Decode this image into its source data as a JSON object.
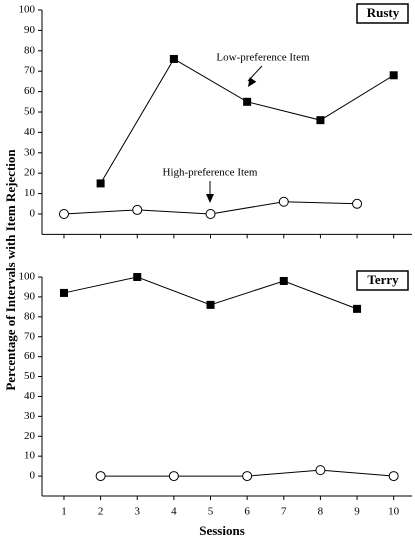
{
  "shared_labels": {
    "y": "Percentage of Intervals with Item Rejection",
    "x": "Sessions"
  },
  "chart_data": [
    {
      "type": "line",
      "label": "Rusty",
      "xlim": [
        0.4,
        10.5
      ],
      "ylim": [
        -10,
        100
      ],
      "yticks": [
        0,
        10,
        20,
        30,
        40,
        50,
        60,
        70,
        80,
        90,
        100
      ],
      "xticks": [
        1,
        2,
        3,
        4,
        5,
        6,
        7,
        8,
        9,
        10
      ],
      "show_xtick_labels": false,
      "series": [
        {
          "marker": "square",
          "color": "#000000",
          "x": [
            2,
            4,
            6,
            8,
            10
          ],
          "values": [
            15,
            76,
            55,
            46,
            68
          ]
        },
        {
          "marker": "circle",
          "color": "#000000",
          "x": [
            1,
            3,
            5,
            7,
            9
          ],
          "values": [
            0,
            2,
            0,
            6,
            5
          ]
        }
      ],
      "annotations": [
        "Low-preference Item",
        "High-preference Item"
      ]
    },
    {
      "type": "line",
      "label": "Terry",
      "xlim": [
        0.4,
        10.5
      ],
      "ylim": [
        -10,
        100
      ],
      "yticks": [
        0,
        10,
        20,
        30,
        40,
        50,
        60,
        70,
        80,
        90,
        100
      ],
      "xticks": [
        1,
        2,
        3,
        4,
        5,
        6,
        7,
        8,
        9,
        10
      ],
      "show_xtick_labels": true,
      "series": [
        {
          "marker": "square",
          "color": "#000000",
          "x": [
            1,
            3,
            5,
            7,
            9
          ],
          "values": [
            92,
            100,
            86,
            98,
            84
          ]
        },
        {
          "marker": "circle",
          "color": "#000000",
          "x": [
            2,
            4,
            6,
            8,
            10
          ],
          "values": [
            0,
            0,
            0,
            3,
            0
          ]
        }
      ],
      "annotations": []
    }
  ]
}
